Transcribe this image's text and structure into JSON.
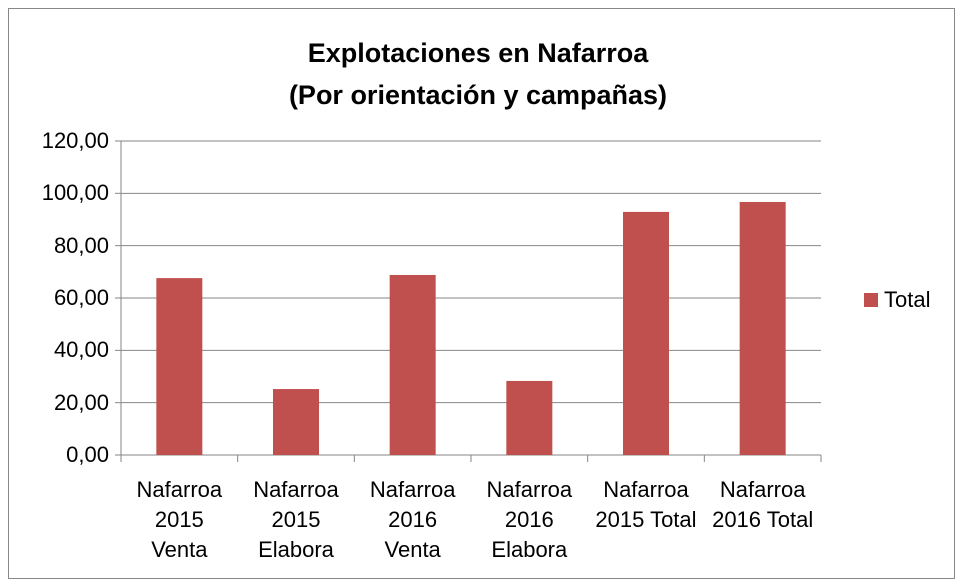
{
  "chart_data": {
    "type": "bar",
    "title": "Explotaciones  en Nafarroa\n(Por orientación y campañas)",
    "categories": [
      "Nafarroa\n2015\nVenta",
      "Nafarroa\n2015\nElabora",
      "Nafarroa\n2016\nVenta",
      "Nafarroa\n2016\nElabora",
      "Nafarroa\n2015 Total",
      "Nafarroa\n2016 Total"
    ],
    "series": [
      {
        "name": "Total",
        "color": "#c0504d",
        "values": [
          67.6,
          25.2,
          68.8,
          28.3,
          92.9,
          96.7
        ]
      }
    ],
    "ylim": [
      0,
      120
    ],
    "yticks": [
      {
        "value": 0,
        "label": "0,00"
      },
      {
        "value": 20,
        "label": "20,00"
      },
      {
        "value": 40,
        "label": "40,00"
      },
      {
        "value": 60,
        "label": "60,00"
      },
      {
        "value": 80,
        "label": "80,00"
      },
      {
        "value": 100,
        "label": "100,00"
      },
      {
        "value": 120,
        "label": "120,00"
      }
    ],
    "grid": true,
    "legend": "right"
  }
}
